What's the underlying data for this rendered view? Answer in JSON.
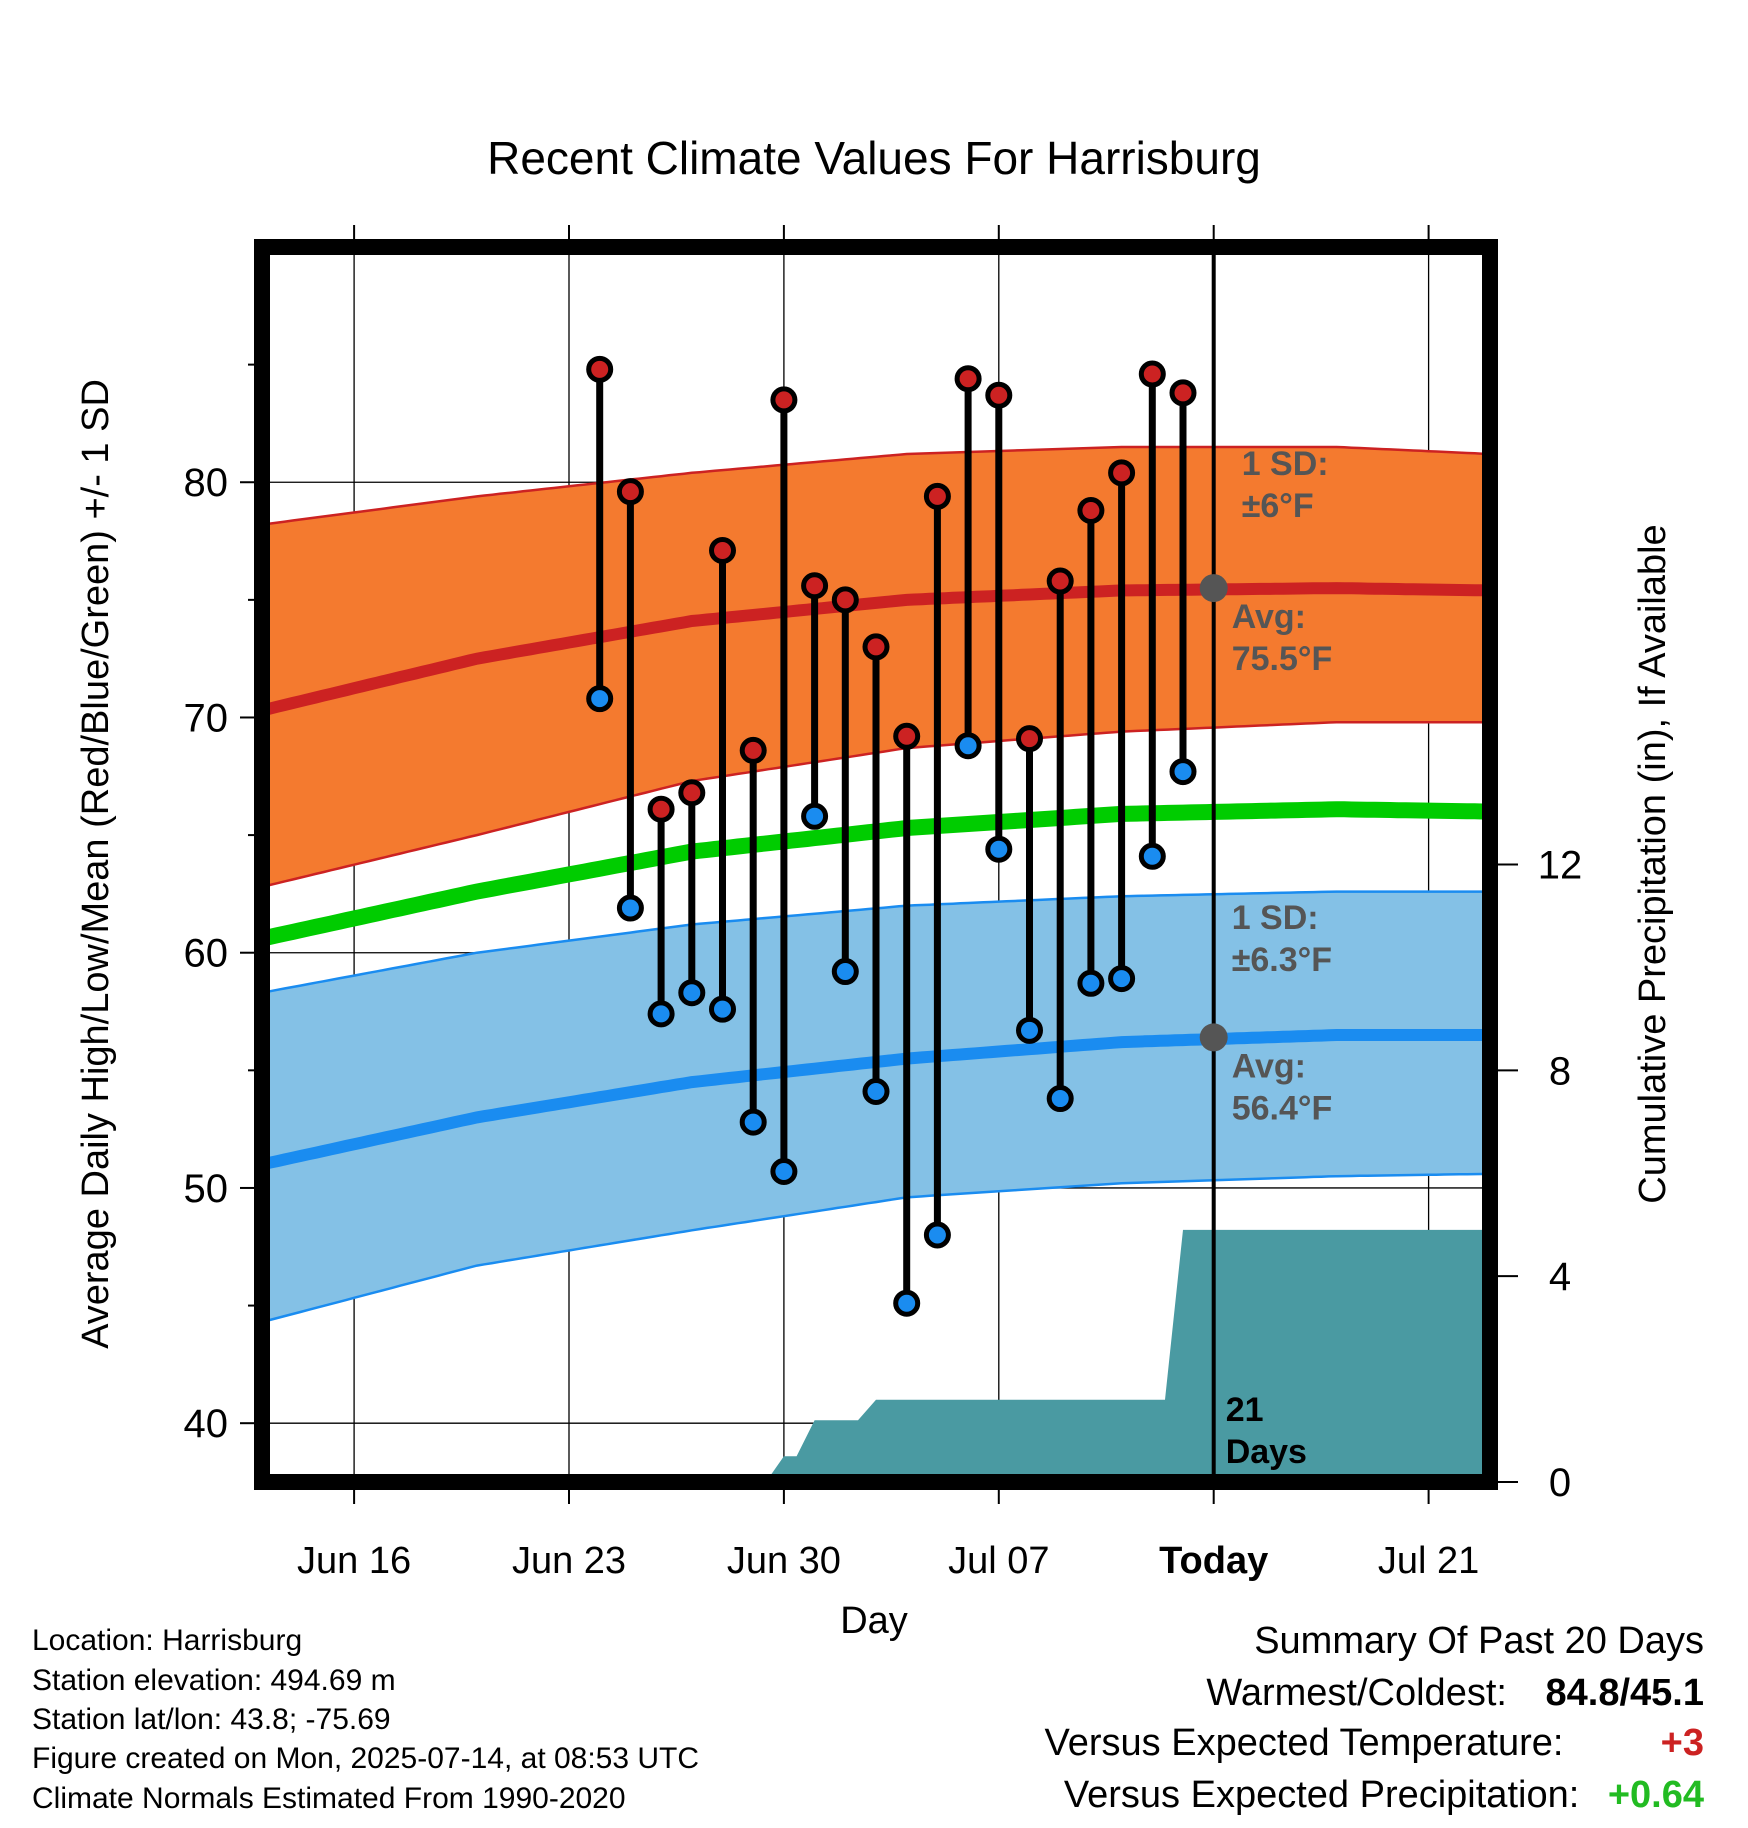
{
  "chart_data": {
    "type": "line",
    "title": "Recent Climate Values For Harrisburg",
    "xlabel": "Day",
    "ylabel": "Average Daily High/Low/Mean (Red/Blue/Green) +/- 1 SD",
    "y2label": "Cumulative Precipitation (in), If Available",
    "x_ticks": [
      "Jun 16",
      "Jun 23",
      "Jun 30",
      "Jul 07",
      "Today",
      "Jul 21"
    ],
    "x_range": [
      "2025-06-13",
      "2025-07-23"
    ],
    "y_ticks": [
      40,
      50,
      60,
      70,
      80
    ],
    "ylim": [
      37.5,
      90
    ],
    "y2_ticks": [
      0,
      4,
      8,
      12
    ],
    "y2lim": [
      0,
      24
    ],
    "grid": true,
    "today": "2025-07-14",
    "normals": {
      "dates": [
        "2025-06-13",
        "2025-06-20",
        "2025-06-27",
        "2025-07-04",
        "2025-07-11",
        "2025-07-18",
        "2025-07-23"
      ],
      "high_mean": [
        70.3,
        72.5,
        74.1,
        75.0,
        75.4,
        75.5,
        75.4
      ],
      "high_sd_upper": [
        78.2,
        79.4,
        80.4,
        81.2,
        81.5,
        81.5,
        81.2
      ],
      "high_sd_lower": [
        62.8,
        65.0,
        67.3,
        68.7,
        69.4,
        69.8,
        69.8
      ],
      "mean": [
        60.6,
        62.6,
        64.3,
        65.3,
        65.9,
        66.1,
        66.0
      ],
      "low_mean": [
        51.0,
        53.0,
        54.5,
        55.5,
        56.2,
        56.5,
        56.5
      ],
      "low_sd_upper": [
        58.3,
        60.0,
        61.2,
        62.0,
        62.4,
        62.6,
        62.6
      ],
      "low_sd_lower": [
        44.3,
        46.7,
        48.2,
        49.6,
        50.2,
        50.5,
        50.6
      ]
    },
    "daily": {
      "dates": [
        "2025-06-24",
        "2025-06-25",
        "2025-06-26",
        "2025-06-27",
        "2025-06-28",
        "2025-06-29",
        "2025-06-30",
        "2025-07-01",
        "2025-07-02",
        "2025-07-03",
        "2025-07-04",
        "2025-07-05",
        "2025-07-06",
        "2025-07-07",
        "2025-07-08",
        "2025-07-09",
        "2025-07-10",
        "2025-07-11",
        "2025-07-12",
        "2025-07-13"
      ],
      "high": [
        84.8,
        79.6,
        66.1,
        66.8,
        77.1,
        68.6,
        83.5,
        75.6,
        75.0,
        73.0,
        69.2,
        79.4,
        84.4,
        83.7,
        69.1,
        75.8,
        78.8,
        80.4,
        84.6,
        83.8
      ],
      "low": [
        70.8,
        61.9,
        57.4,
        58.3,
        57.6,
        52.8,
        50.7,
        65.8,
        59.2,
        54.1,
        45.1,
        48.0,
        68.8,
        64.4,
        56.7,
        53.8,
        58.7,
        58.9,
        64.1,
        67.7
      ]
    },
    "precip": {
      "dates": [
        "2025-06-29",
        "2025-06-30",
        "2025-07-01",
        "2025-07-02",
        "2025-07-03",
        "2025-07-12",
        "2025-07-13",
        "2025-07-23"
      ],
      "cumulative": [
        0,
        0.5,
        1.2,
        1.2,
        1.6,
        1.6,
        4.9,
        4.9
      ]
    },
    "annotations": {
      "high_sd": [
        "1 SD:",
        "±6°F"
      ],
      "high_avg": [
        "Avg:",
        "75.5°F"
      ],
      "high_avg_value": 75.5,
      "low_sd": [
        "1 SD:",
        "±6.3°F"
      ],
      "low_avg": [
        "Avg:",
        "56.4°F"
      ],
      "low_avg_value": 56.4,
      "days": [
        "21",
        "Days"
      ]
    },
    "colors": {
      "high_band": "#f47a2f",
      "high_line": "#cc2222",
      "low_band": "#84c1e6",
      "low_line": "#1a8cf0",
      "mean_line": "#00cc00",
      "precip": "#4a9aa2",
      "stem": "#000000",
      "annotation": "#555555",
      "positive_temp": "#cc2222",
      "positive_precip": "#22bb22"
    }
  },
  "footer": {
    "location": "Location: Harrisburg",
    "elevation": "Station elevation: 494.69 m",
    "latlon": "Station lat/lon: 43.8; -75.69",
    "created": "Figure created on Mon, 2025-07-14, at 08:53 UTC",
    "normals": "Climate Normals Estimated From 1990-2020"
  },
  "summary": {
    "title": "Summary Of Past 20 Days",
    "warm_cold_label": "Warmest/Coldest:",
    "warm_cold_value": "84.8/45.1",
    "temp_label": "Versus Expected Temperature:",
    "temp_value": "+3",
    "precip_label": "Versus Expected Precipitation:",
    "precip_value": "+0.64"
  }
}
